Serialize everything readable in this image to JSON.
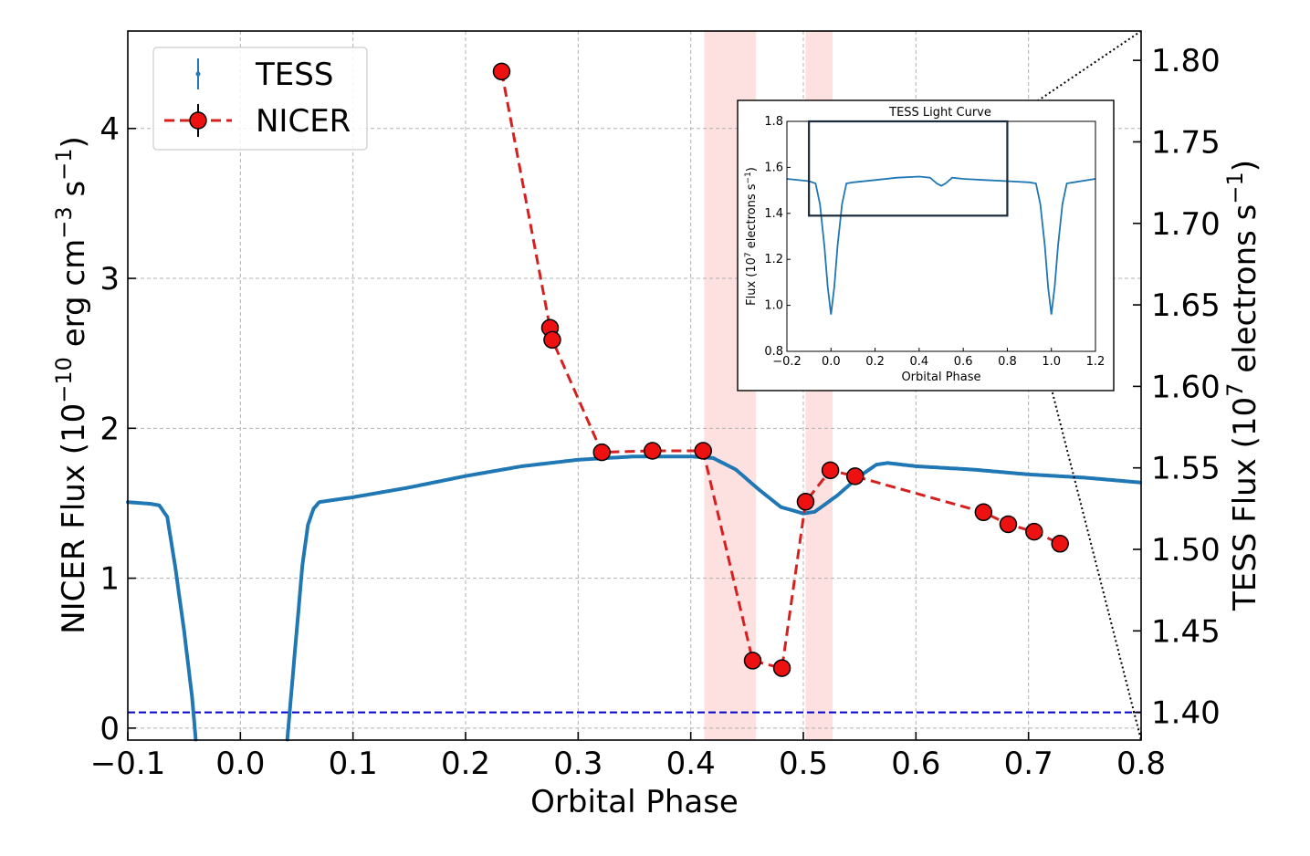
{
  "chart_data": {
    "type": "line",
    "xlabel": "Orbital Phase",
    "ylabel_left": "NICER Flux (10⁻¹⁰ erg cm⁻³ s⁻¹)",
    "ylabel_left_parts": {
      "pre": "NICER Flux (10",
      "sup1": "−10",
      "mid": " erg cm",
      "sup2": "−3",
      "mid2": " s",
      "sup3": "−1",
      "post": ")"
    },
    "ylabel_right": "TESS Flux (10⁷ electrons s⁻¹)",
    "ylabel_right_parts": {
      "pre": "TESS Flux (10",
      "sup1": "7",
      "mid": " electrons s",
      "sup2": "−1",
      "post": ")"
    },
    "xlim": [
      -0.1,
      0.8
    ],
    "ylim_left": [
      -0.08,
      4.65
    ],
    "ylim_right": [
      1.383,
      1.818
    ],
    "x_ticks": [
      {
        "v": -0.1,
        "label": "−0.1"
      },
      {
        "v": 0.0,
        "label": "0.0"
      },
      {
        "v": 0.1,
        "label": "0.1"
      },
      {
        "v": 0.2,
        "label": "0.2"
      },
      {
        "v": 0.3,
        "label": "0.3"
      },
      {
        "v": 0.4,
        "label": "0.4"
      },
      {
        "v": 0.5,
        "label": "0.5"
      },
      {
        "v": 0.6,
        "label": "0.6"
      },
      {
        "v": 0.7,
        "label": "0.7"
      },
      {
        "v": 0.8,
        "label": "0.8"
      }
    ],
    "y_ticks_left": [
      {
        "v": 0,
        "label": "0"
      },
      {
        "v": 1,
        "label": "1"
      },
      {
        "v": 2,
        "label": "2"
      },
      {
        "v": 3,
        "label": "3"
      },
      {
        "v": 4,
        "label": "4"
      }
    ],
    "y_ticks_right": [
      {
        "v": 1.4,
        "label": "1.40"
      },
      {
        "v": 1.45,
        "label": "1.45"
      },
      {
        "v": 1.5,
        "label": "1.50"
      },
      {
        "v": 1.55,
        "label": "1.55"
      },
      {
        "v": 1.6,
        "label": "1.60"
      },
      {
        "v": 1.65,
        "label": "1.65"
      },
      {
        "v": 1.7,
        "label": "1.70"
      },
      {
        "v": 1.75,
        "label": "1.75"
      },
      {
        "v": 1.8,
        "label": "1.80"
      }
    ],
    "grid": true,
    "legend": {
      "position": "top-left",
      "entries": [
        "TESS",
        "NICER"
      ]
    },
    "shaded_regions": [
      [
        0.412,
        0.458
      ],
      [
        0.502,
        0.526
      ]
    ],
    "horizontal_line": {
      "axis": "right",
      "y": 1.4,
      "style": "dashed",
      "color": "#0000cc"
    },
    "series": [
      {
        "name": "NICER",
        "axis": "left",
        "style": "dashed line with circle markers",
        "color": "#d62020",
        "x": [
          0.232,
          0.275,
          0.277,
          0.321,
          0.366,
          0.411,
          0.455,
          0.481,
          0.502,
          0.524,
          0.546,
          0.66,
          0.682,
          0.705,
          0.728
        ],
        "y": [
          4.38,
          2.67,
          2.59,
          1.84,
          1.85,
          1.85,
          0.45,
          0.4,
          1.51,
          1.72,
          1.68,
          1.44,
          1.36,
          1.31,
          1.23
        ]
      },
      {
        "name": "TESS",
        "axis": "right",
        "style": "dense points",
        "color": "#1f77b4",
        "x": [
          -0.1,
          -0.08,
          -0.072,
          -0.065,
          -0.058,
          -0.05,
          -0.043,
          -0.038,
          -0.033,
          0.035,
          0.04,
          0.045,
          0.05,
          0.055,
          0.06,
          0.065,
          0.07,
          0.1,
          0.15,
          0.2,
          0.25,
          0.3,
          0.35,
          0.4,
          0.42,
          0.44,
          0.46,
          0.48,
          0.5,
          0.51,
          0.53,
          0.55,
          0.565,
          0.575,
          0.6,
          0.65,
          0.7,
          0.75,
          0.8
        ],
        "y": [
          1.529,
          1.528,
          1.527,
          1.52,
          1.49,
          1.45,
          1.41,
          1.37,
          1.34,
          1.34,
          1.37,
          1.41,
          1.45,
          1.49,
          1.515,
          1.525,
          1.529,
          1.532,
          1.538,
          1.545,
          1.551,
          1.555,
          1.557,
          1.557,
          1.556,
          1.549,
          1.537,
          1.526,
          1.522,
          1.523,
          1.533,
          1.545,
          1.552,
          1.553,
          1.551,
          1.549,
          1.546,
          1.544,
          1.541
        ]
      }
    ],
    "inset": {
      "title": "TESS Light Curve",
      "xlabel": "Orbital Phase",
      "ylabel": "Flux (10⁷ electrons s⁻¹)",
      "ylabel_parts": {
        "pre": "Flux (10",
        "sup1": "7",
        "mid": " electrons s",
        "sup2": "−1",
        "post": ")"
      },
      "xlim": [
        -0.2,
        1.2
      ],
      "ylim": [
        0.8,
        1.8
      ],
      "x_ticks": [
        {
          "v": -0.2,
          "label": "−0.2"
        },
        {
          "v": 0.0,
          "label": "0.0"
        },
        {
          "v": 0.2,
          "label": "0.2"
        },
        {
          "v": 0.4,
          "label": "0.4"
        },
        {
          "v": 0.6,
          "label": "0.6"
        },
        {
          "v": 0.8,
          "label": "0.8"
        },
        {
          "v": 1.0,
          "label": "1.0"
        },
        {
          "v": 1.2,
          "label": "1.2"
        }
      ],
      "y_ticks": [
        {
          "v": 0.8,
          "label": "0.8"
        },
        {
          "v": 1.0,
          "label": "1.0"
        },
        {
          "v": 1.2,
          "label": "1.2"
        },
        {
          "v": 1.4,
          "label": "1.4"
        },
        {
          "v": 1.6,
          "label": "1.6"
        },
        {
          "v": 1.8,
          "label": "1.8"
        }
      ],
      "zoom_box": {
        "x": [
          -0.1,
          0.8
        ],
        "y": [
          1.39,
          1.8
        ]
      },
      "series": {
        "name": "TESS",
        "x": [
          -0.2,
          -0.1,
          -0.07,
          -0.05,
          -0.03,
          -0.015,
          0.0,
          0.015,
          0.03,
          0.05,
          0.07,
          0.1,
          0.2,
          0.3,
          0.4,
          0.45,
          0.48,
          0.5,
          0.52,
          0.55,
          0.6,
          0.7,
          0.8,
          0.9,
          0.93,
          0.95,
          0.97,
          0.985,
          1.0,
          1.015,
          1.03,
          1.05,
          1.07,
          1.1,
          1.2
        ],
        "y": [
          1.55,
          1.54,
          1.53,
          1.44,
          1.26,
          1.08,
          0.96,
          1.08,
          1.26,
          1.44,
          1.53,
          1.535,
          1.545,
          1.555,
          1.56,
          1.555,
          1.53,
          1.52,
          1.53,
          1.555,
          1.55,
          1.545,
          1.54,
          1.535,
          1.53,
          1.44,
          1.26,
          1.08,
          0.96,
          1.08,
          1.26,
          1.44,
          1.53,
          1.535,
          1.55
        ]
      }
    }
  },
  "colors": {
    "tess": "#1f77b4",
    "nicer_line": "#d62020",
    "nicer_marker": "#ee1111",
    "shade": "#fde0e0",
    "hline": "#0000cc"
  }
}
